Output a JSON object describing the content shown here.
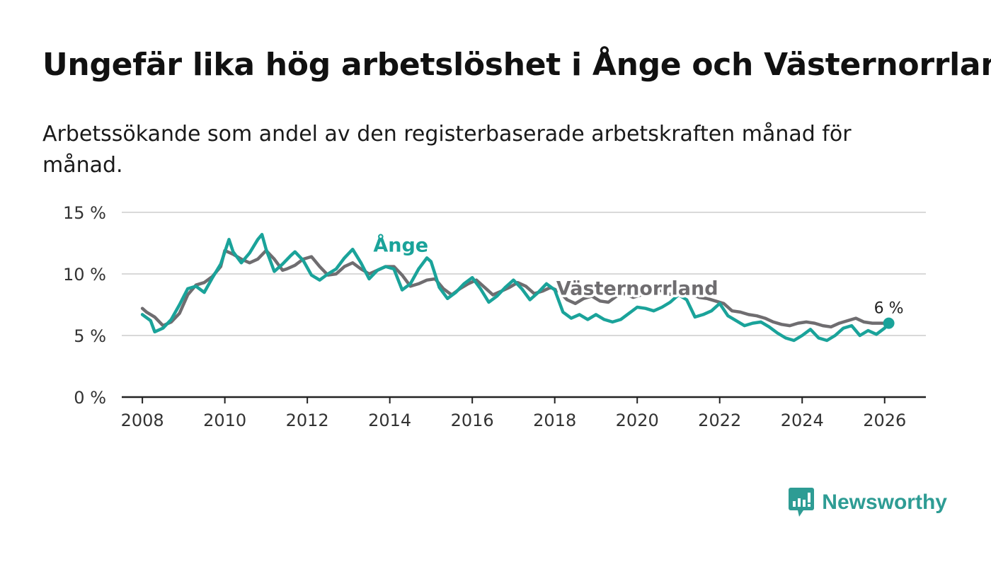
{
  "title": "Ungefär lika hög arbetslöshet i Ånge och Västernorrland",
  "subtitle": "Arbetssökande som andel av den registerbaserade arbetskraften månad för månad.",
  "brand": {
    "name": "Newsworthy",
    "color": "#2e9c94",
    "icon": "newsworthy-chart-icon"
  },
  "chart_data": {
    "type": "line",
    "ylim": [
      0,
      15
    ],
    "xlim": [
      2007.5,
      2027.0
    ],
    "y_ticks": [
      0,
      5,
      10,
      15
    ],
    "y_tick_labels": [
      "0 %",
      "5 %",
      "10 %",
      "15 %"
    ],
    "x_ticks": [
      2008,
      2010,
      2012,
      2014,
      2016,
      2018,
      2020,
      2022,
      2024,
      2026
    ],
    "x_tick_labels": [
      "2008",
      "2010",
      "2012",
      "2014",
      "2016",
      "2018",
      "2020",
      "2022",
      "2024",
      "2026"
    ],
    "grid": true,
    "end_label": {
      "text": "6 %",
      "x": 2026.1,
      "y": 6.0
    },
    "series": [
      {
        "name": "Västernorrland",
        "label": "Västernorrland",
        "label_pos": {
          "x": 2020.0,
          "y": 8.3
        },
        "color": "#6f6d70",
        "x": [
          2008.0,
          2008.1,
          2008.3,
          2008.5,
          2008.7,
          2008.9,
          2009.1,
          2009.3,
          2009.5,
          2009.7,
          2009.9,
          2010.0,
          2010.2,
          2010.4,
          2010.6,
          2010.8,
          2011.0,
          2011.2,
          2011.4,
          2011.5,
          2011.7,
          2011.9,
          2012.1,
          2012.3,
          2012.5,
          2012.7,
          2012.9,
          2013.1,
          2013.3,
          2013.5,
          2013.7,
          2013.9,
          2014.1,
          2014.3,
          2014.5,
          2014.7,
          2014.9,
          2015.1,
          2015.3,
          2015.5,
          2015.7,
          2015.9,
          2016.1,
          2016.3,
          2016.5,
          2016.7,
          2016.9,
          2017.1,
          2017.3,
          2017.5,
          2017.7,
          2017.9,
          2018.1,
          2018.3,
          2018.5,
          2018.7,
          2018.9,
          2019.1,
          2019.3,
          2019.5,
          2019.7,
          2019.9,
          2020.1,
          2020.3,
          2020.5,
          2020.7,
          2020.9,
          2021.1,
          2021.3,
          2021.5,
          2021.7,
          2021.9,
          2022.1,
          2022.3,
          2022.5,
          2022.7,
          2022.9,
          2023.1,
          2023.3,
          2023.5,
          2023.7,
          2023.9,
          2024.1,
          2024.3,
          2024.5,
          2024.7,
          2024.9,
          2025.1,
          2025.3,
          2025.5,
          2025.7,
          2025.9,
          2026.1
        ],
        "values": [
          7.2,
          6.9,
          6.5,
          5.8,
          6.1,
          6.8,
          8.3,
          9.1,
          9.3,
          9.8,
          10.6,
          11.9,
          11.6,
          11.2,
          10.9,
          11.2,
          11.9,
          11.2,
          10.3,
          10.4,
          10.7,
          11.2,
          11.4,
          10.6,
          9.9,
          10.0,
          10.6,
          10.9,
          10.4,
          10.0,
          10.3,
          10.6,
          10.6,
          9.9,
          9.0,
          9.2,
          9.5,
          9.6,
          8.8,
          8.3,
          8.8,
          9.2,
          9.5,
          8.9,
          8.3,
          8.6,
          8.9,
          9.3,
          9.0,
          8.4,
          8.6,
          8.9,
          8.6,
          7.9,
          7.6,
          8.0,
          8.2,
          7.8,
          7.7,
          8.2,
          8.4,
          8.1,
          8.3,
          8.6,
          8.8,
          8.4,
          8.3,
          8.6,
          8.4,
          8.1,
          8.0,
          7.8,
          7.6,
          7.0,
          6.9,
          6.7,
          6.6,
          6.4,
          6.1,
          5.9,
          5.8,
          6.0,
          6.1,
          6.0,
          5.8,
          5.7,
          6.0,
          6.2,
          6.4,
          6.1,
          6.0,
          6.0,
          6.0
        ]
      },
      {
        "name": "Ånge",
        "label": "Ånge",
        "label_pos": {
          "x": 2013.6,
          "y": 11.8
        },
        "color": "#1aa39a",
        "x": [
          2008.0,
          2008.2,
          2008.3,
          2008.5,
          2008.7,
          2008.9,
          2009.1,
          2009.3,
          2009.5,
          2009.7,
          2009.9,
          2010.1,
          2010.2,
          2010.4,
          2010.6,
          2010.8,
          2010.9,
          2011.0,
          2011.2,
          2011.4,
          2011.6,
          2011.7,
          2011.9,
          2012.1,
          2012.3,
          2012.5,
          2012.7,
          2012.9,
          2013.1,
          2013.3,
          2013.5,
          2013.7,
          2013.9,
          2014.1,
          2014.3,
          2014.5,
          2014.7,
          2014.9,
          2015.0,
          2015.2,
          2015.4,
          2015.6,
          2015.8,
          2016.0,
          2016.2,
          2016.4,
          2016.6,
          2016.8,
          2017.0,
          2017.2,
          2017.4,
          2017.6,
          2017.8,
          2018.0,
          2018.2,
          2018.4,
          2018.6,
          2018.8,
          2019.0,
          2019.2,
          2019.4,
          2019.6,
          2019.8,
          2020.0,
          2020.2,
          2020.4,
          2020.6,
          2020.8,
          2021.0,
          2021.2,
          2021.4,
          2021.6,
          2021.8,
          2022.0,
          2022.2,
          2022.4,
          2022.6,
          2022.8,
          2023.0,
          2023.2,
          2023.4,
          2023.6,
          2023.8,
          2024.0,
          2024.2,
          2024.4,
          2024.6,
          2024.8,
          2025.0,
          2025.2,
          2025.4,
          2025.6,
          2025.8,
          2026.0,
          2026.1
        ],
        "values": [
          6.7,
          6.2,
          5.3,
          5.6,
          6.3,
          7.5,
          8.8,
          9.0,
          8.5,
          9.7,
          10.8,
          12.8,
          11.8,
          10.9,
          11.7,
          12.8,
          13.2,
          12.0,
          10.2,
          10.8,
          11.5,
          11.8,
          11.1,
          9.9,
          9.5,
          10.0,
          10.4,
          11.3,
          12.0,
          10.9,
          9.6,
          10.3,
          10.6,
          10.4,
          8.7,
          9.2,
          10.4,
          11.3,
          11.0,
          8.9,
          8.0,
          8.5,
          9.2,
          9.7,
          8.8,
          7.7,
          8.2,
          8.9,
          9.5,
          8.8,
          7.9,
          8.5,
          9.2,
          8.7,
          6.9,
          6.4,
          6.7,
          6.3,
          6.7,
          6.3,
          6.1,
          6.3,
          6.8,
          7.3,
          7.2,
          7.0,
          7.3,
          7.7,
          8.3,
          7.9,
          6.5,
          6.7,
          7.0,
          7.6,
          6.6,
          6.2,
          5.8,
          6.0,
          6.1,
          5.7,
          5.2,
          4.8,
          4.6,
          5.0,
          5.5,
          4.8,
          4.6,
          5.0,
          5.6,
          5.8,
          5.0,
          5.4,
          5.1,
          5.6,
          6.0
        ]
      }
    ]
  }
}
